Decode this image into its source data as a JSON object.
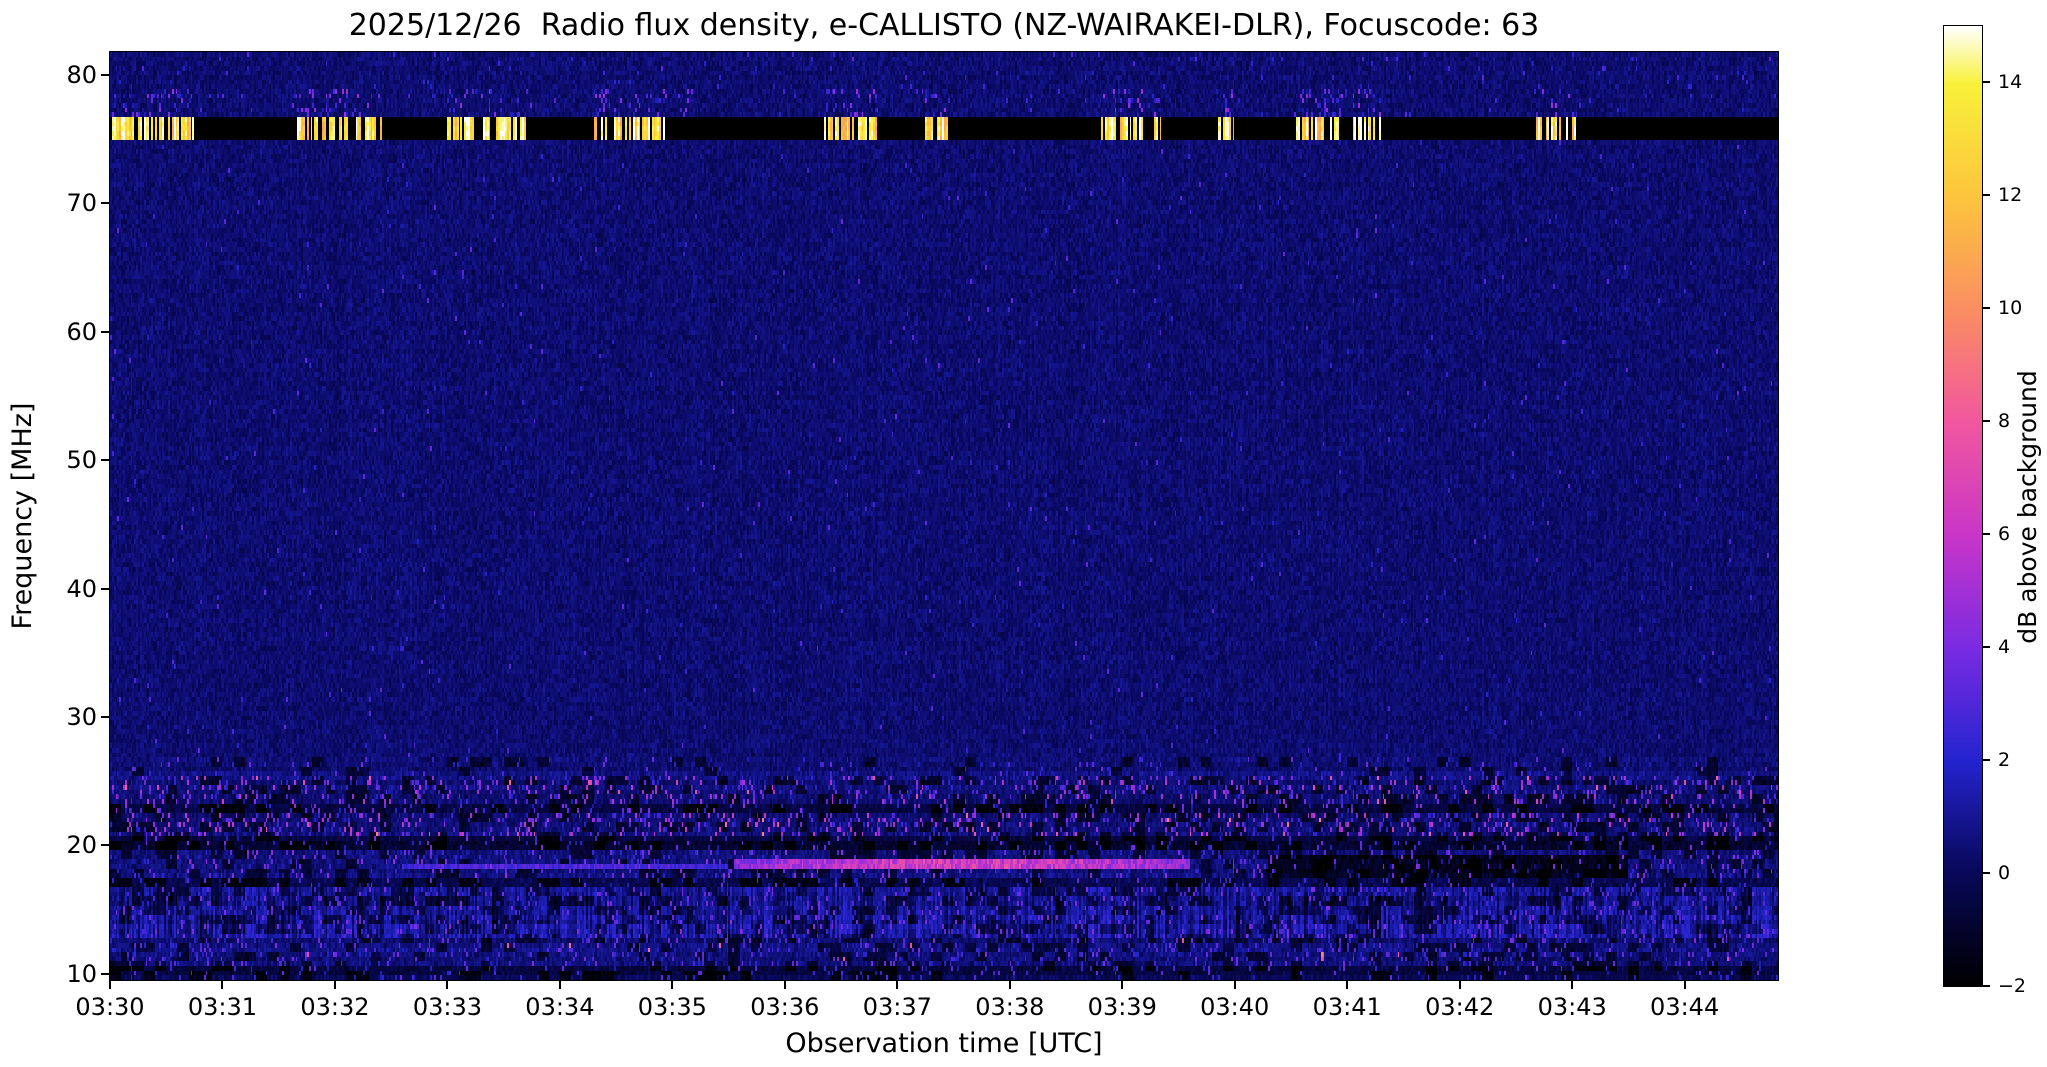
{
  "chart_data": {
    "type": "heatmap",
    "title": "2025/12/26  Radio flux density, e-CALLISTO (NZ-WAIRAKEI-DLR), Focuscode: 63",
    "date": "2025/12/26",
    "instrument": "e-CALLISTO",
    "station": "NZ-WAIRAKEI-DLR",
    "focuscode": "63",
    "xlabel": "Observation time [UTC]",
    "ylabel": "Frequency [MHz]",
    "colorbar_label": "dB above background",
    "x_ticks": [
      "03:30",
      "03:31",
      "03:32",
      "03:33",
      "03:34",
      "03:35",
      "03:36",
      "03:37",
      "03:38",
      "03:39",
      "03:40",
      "03:41",
      "03:42",
      "03:43",
      "03:44"
    ],
    "x_tick_minutes": [
      0,
      1,
      2,
      3,
      4,
      5,
      6,
      7,
      8,
      9,
      10,
      11,
      12,
      13,
      14
    ],
    "xlim_minutes": [
      0,
      14.83
    ],
    "y_ticks": [
      10,
      20,
      30,
      40,
      50,
      60,
      70,
      80
    ],
    "ylim": [
      9.5,
      81.8
    ],
    "colorbar_ticks": [
      -2,
      0,
      2,
      4,
      6,
      8,
      10,
      12,
      14
    ],
    "colorbar_tick_labels": [
      "−2",
      "0",
      "2",
      "4",
      "6",
      "8",
      "10",
      "12",
      "14"
    ],
    "clim": [
      -2,
      15
    ],
    "grid": false,
    "legend": "colorbar-right",
    "colormap_stops": [
      [
        0.0,
        "#000000"
      ],
      [
        0.12,
        "#08085a"
      ],
      [
        0.235,
        "#2424cf"
      ],
      [
        0.353,
        "#7a2be2"
      ],
      [
        0.47,
        "#c936c8"
      ],
      [
        0.588,
        "#f1579f"
      ],
      [
        0.7,
        "#fa8c64"
      ],
      [
        0.82,
        "#fcc43d"
      ],
      [
        0.94,
        "#f8f13a"
      ],
      [
        1.0,
        "#ffffff"
      ]
    ],
    "seed": 42,
    "features": {
      "background_db": 0.4,
      "rfi_band": {
        "f_min": 75.0,
        "f_max": 76.9,
        "level_db": -2,
        "burst_db_min": 11,
        "burst_db_max": 15.5,
        "burst_intervals_min": [
          [
            0.0,
            0.75
          ],
          [
            1.62,
            2.42
          ],
          [
            3.0,
            3.7
          ],
          [
            4.3,
            4.95
          ],
          [
            5.05,
            5.15
          ],
          [
            6.35,
            6.85
          ],
          [
            7.25,
            7.45
          ],
          [
            8.8,
            9.35
          ],
          [
            9.85,
            10.0
          ],
          [
            10.55,
            11.3
          ],
          [
            12.65,
            13.05
          ]
        ]
      },
      "upper_speckle": {
        "f_min": 76.9,
        "f_max": 78.9,
        "speckle_p": 0.12,
        "speckle_v": 3.5
      },
      "low_freq_bands": [
        {
          "f_min": 25.5,
          "f_max": 27.0,
          "base": 0.1,
          "speckle_p": 0.03,
          "speckle_v": 2.8,
          "gate": 0.12
        },
        {
          "f_min": 23.2,
          "f_max": 25.5,
          "base": 0.15,
          "speckle_p": 0.13,
          "speckle_v": 4.5,
          "hot_p": 0.008,
          "hot_v": 7.5,
          "gate": 0.3
        },
        {
          "f_min": 22.4,
          "f_max": 23.2,
          "base": -0.9,
          "speckle_p": 0.06,
          "speckle_v": 3.5,
          "gate": 0.35
        },
        {
          "f_min": 20.8,
          "f_max": 22.4,
          "base": 0.1,
          "speckle_p": 0.16,
          "speckle_v": 5.0,
          "hot_p": 0.006,
          "hot_v": 8.5,
          "gate": 0.3
        },
        {
          "f_min": 19.6,
          "f_max": 20.8,
          "base": -1.1,
          "speckle_p": 0.05,
          "speckle_v": 3.0,
          "gate": 0.3
        },
        {
          "f_min": 17.6,
          "f_max": 19.6,
          "base": 0.25,
          "speckle_p": 0.09,
          "speckle_v": 3.5,
          "gate": 0.3
        },
        {
          "f_min": 16.6,
          "f_max": 17.6,
          "base": -0.6,
          "speckle_p": 0.05,
          "speckle_v": 2.8,
          "gate": 0.3
        },
        {
          "f_min": 14.7,
          "f_max": 16.6,
          "base": 0.5,
          "speckle_p": 0.1,
          "speckle_v": 3.0,
          "stripe": 1.6,
          "gate": 0.35
        },
        {
          "f_min": 12.7,
          "f_max": 14.7,
          "base": 0.7,
          "speckle_p": 0.12,
          "speckle_v": 3.2,
          "stripe": 2.2,
          "gate": 0.35
        },
        {
          "f_min": 10.7,
          "f_max": 12.7,
          "base": 0.2,
          "speckle_p": 0.1,
          "speckle_v": 3.0,
          "hot_p": 0.0015,
          "hot_v": 8.0,
          "gate": 0.3
        },
        {
          "f_min": 9.5,
          "f_max": 10.7,
          "base": -0.7,
          "speckle_p": 0.05,
          "speckle_v": 2.5,
          "gate": 0.25
        }
      ],
      "streaks": [
        {
          "f_center": 18.6,
          "f_halfwidth": 0.45,
          "t_start": 5.55,
          "t_end": 9.6,
          "base_db": 2.0,
          "amp_db": 4.5,
          "t_peak": 7.6,
          "t_sigma": 1.8
        },
        {
          "f_center": 18.3,
          "f_halfwidth": 0.3,
          "t_start": 2.6,
          "t_end": 5.5,
          "base_db": 1.5,
          "amp_db": 1.5,
          "t_peak": 4.0,
          "t_sigma": 1.5
        }
      ],
      "dark_patches": [
        {
          "f_min": 17.4,
          "f_max": 19.3,
          "t_start": 10.3,
          "t_end": 13.5,
          "delta_db": -1.9
        }
      ],
      "hot_spots": [
        {
          "t": 10.78,
          "f": 11.6,
          "db": 9.5
        }
      ]
    }
  }
}
